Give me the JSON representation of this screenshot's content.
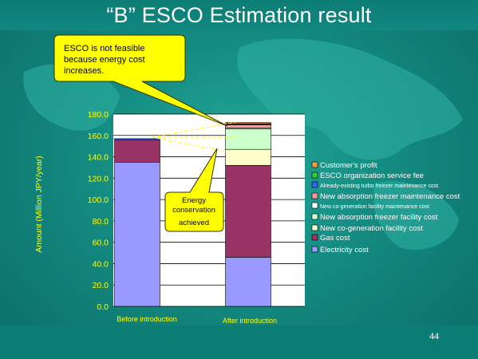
{
  "slide": {
    "title": "“B” ESCO Estimation result",
    "page_number": "44",
    "colors": {
      "background": "#138a80",
      "title": "#ffffff",
      "axis_text": "#ffff00"
    }
  },
  "callouts": {
    "not_feasible": [
      "ESCO is not feasible",
      "because energy cost",
      "increases."
    ],
    "energy_conservation": [
      "Energy",
      "conservation",
      "achieved"
    ]
  },
  "chart_data": {
    "type": "bar",
    "stacked": true,
    "categories": [
      "Before introduction",
      "After introduction"
    ],
    "ylabel": "Amount (Million JPY/year)",
    "ylim": [
      0,
      180
    ],
    "yticks": [
      "0.0",
      "20.0",
      "40.0",
      "60.0",
      "80.0",
      "100.0",
      "120.0",
      "140.0",
      "160.0",
      "180.0"
    ],
    "grid": true,
    "legend_position": "right",
    "series": [
      {
        "name": "Electricity cost",
        "color": "#9999ff",
        "values": [
          135,
          46
        ]
      },
      {
        "name": "Gas cost",
        "color": "#993366",
        "values": [
          21,
          86
        ]
      },
      {
        "name": "New co-generation facility cost",
        "color": "#ffffcc",
        "values": [
          0,
          15
        ]
      },
      {
        "name": "New absorption freezer facility cost",
        "color": "#ccffcc",
        "values": [
          0,
          19
        ]
      },
      {
        "name": "New co-generation  facility maintenance  cost",
        "color": "#ffffff",
        "values": [
          0,
          1
        ]
      },
      {
        "name": "New absorption freezer maintenance cost",
        "color": "#ff9999",
        "values": [
          0,
          3
        ]
      },
      {
        "name": "Already-existing  turbo freezer  maintenance  cost",
        "color": "#3366ff",
        "values": [
          1,
          0.5
        ]
      },
      {
        "name": "ESCO organization service fee",
        "color": "#33cc33",
        "values": [
          0,
          0.5
        ]
      },
      {
        "name": "Customer's profit",
        "color": "#ff9933",
        "values": [
          0,
          1
        ]
      }
    ],
    "legend_order": [
      8,
      7,
      6,
      5,
      4,
      3,
      2,
      1,
      0
    ]
  }
}
